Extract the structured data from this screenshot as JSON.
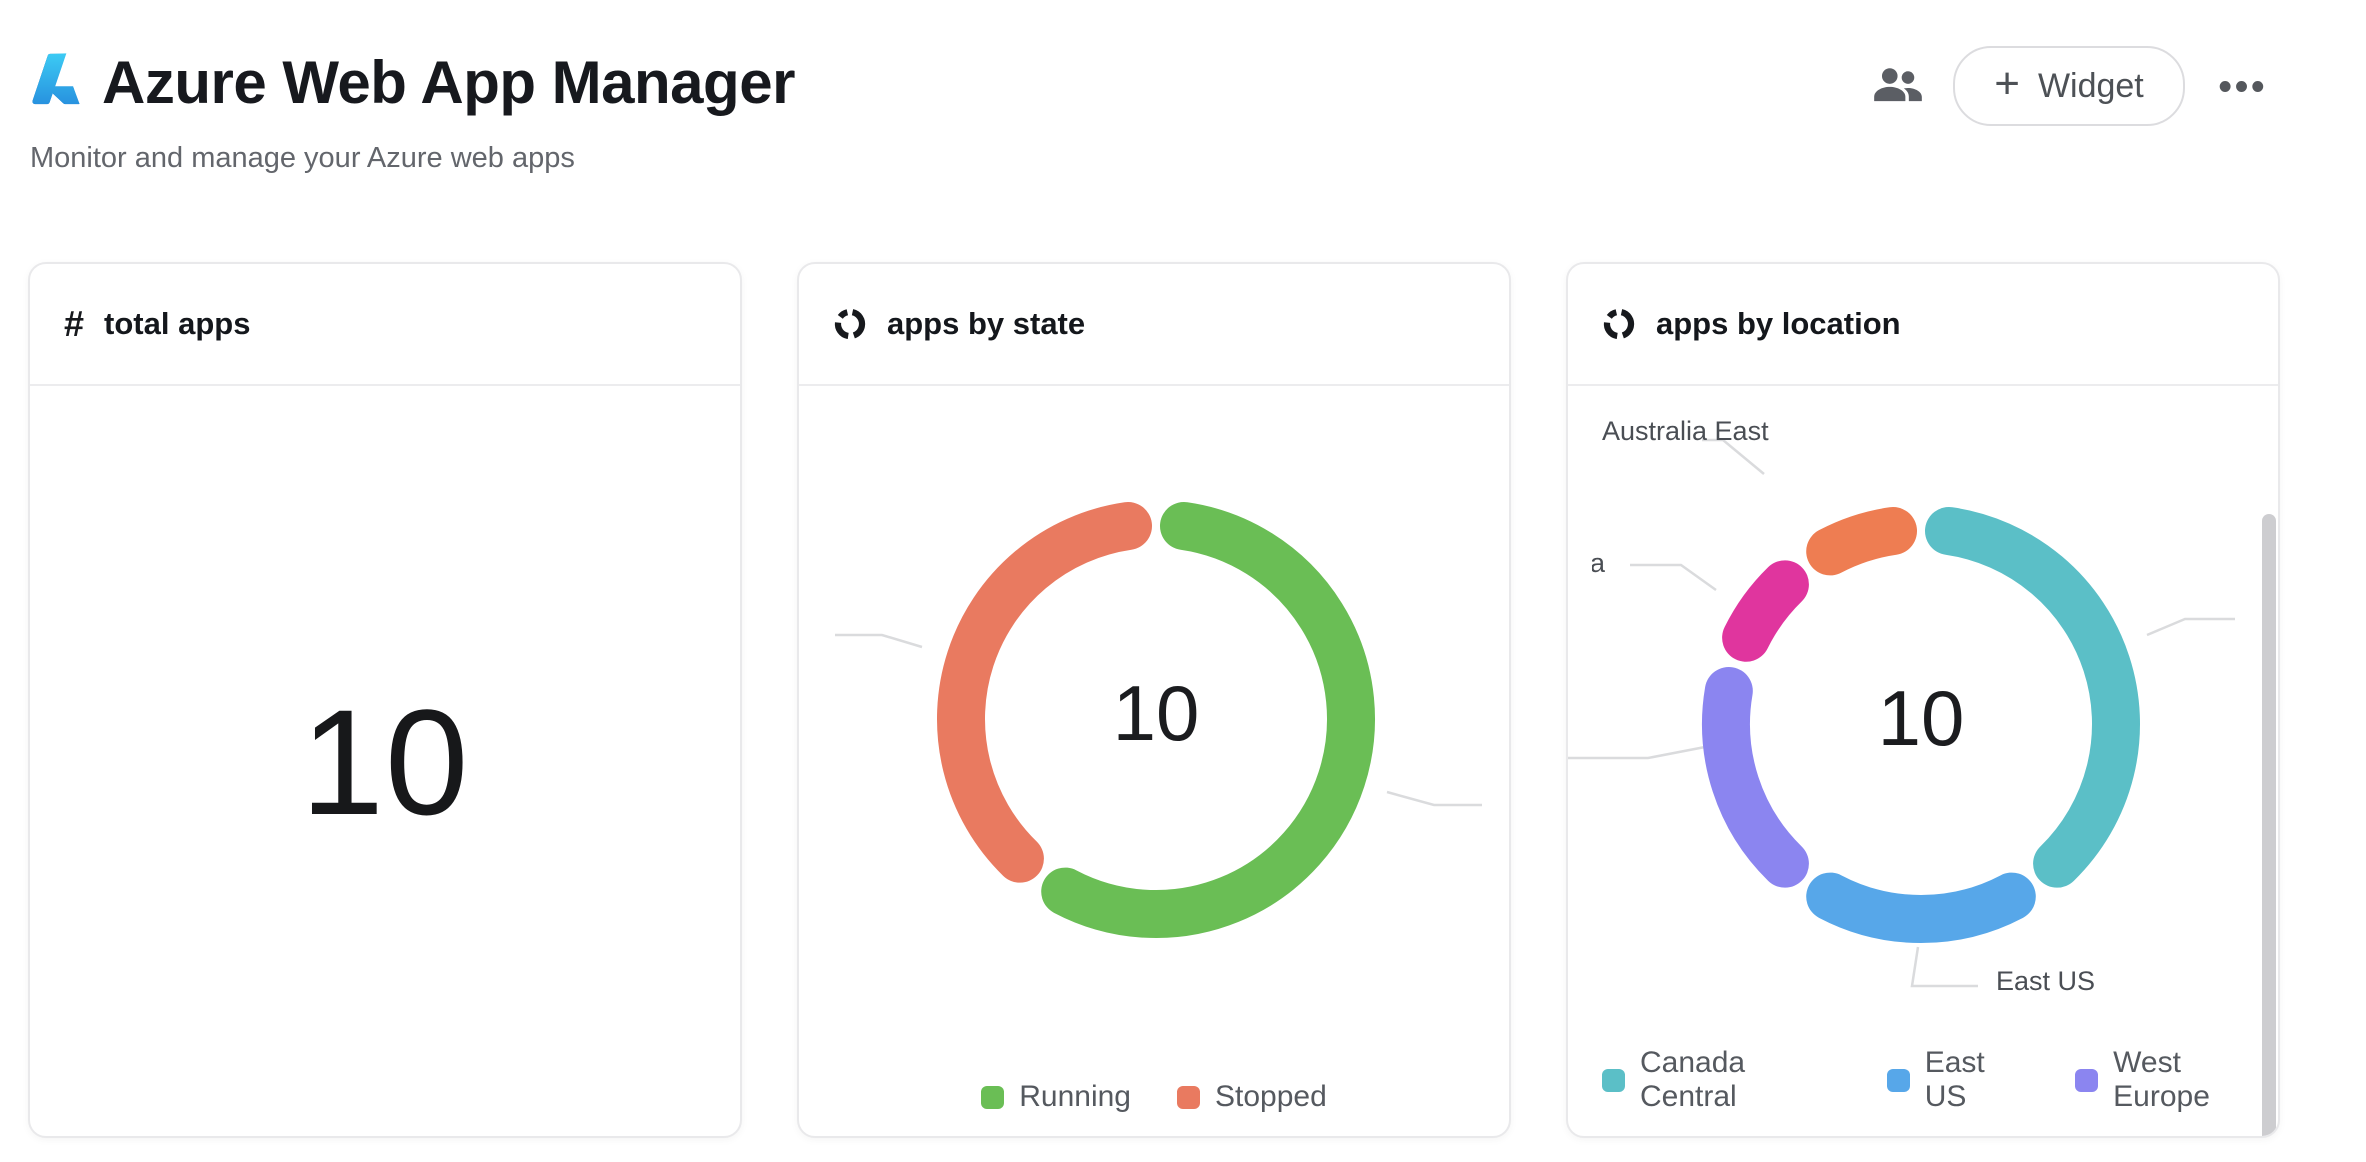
{
  "header": {
    "title": "Azure Web App Manager",
    "subtitle": "Monitor and manage your Azure web apps",
    "logo": "azure-logo",
    "actions": {
      "people_icon": "people-icon",
      "widget_button": {
        "plus": "+",
        "label": "Widget"
      },
      "more_icon": "•••"
    }
  },
  "cards": {
    "total_apps": {
      "icon": "#",
      "title": "total apps",
      "value": "10"
    },
    "apps_by_state": {
      "title": "apps by state",
      "center_label": "10",
      "legend": [
        {
          "label": "Running",
          "color": "#6ABE55"
        },
        {
          "label": "Stopped",
          "color": "#E97A60"
        }
      ]
    },
    "apps_by_location": {
      "title": "apps by location",
      "center_label": "10",
      "legend": [
        {
          "label": "Canada Central",
          "color": "#5BBFC7"
        },
        {
          "label": "East US",
          "color": "#57A7E9"
        },
        {
          "label": "West Europe",
          "color": "#8B85F0"
        }
      ],
      "callout_labels": {
        "australia_east": "Australia East",
        "east_us": "East US",
        "clipped_left_fragment": "a"
      },
      "scrollbar": true
    }
  },
  "chart_data": [
    {
      "type": "donut",
      "title": "apps by state",
      "center_label": "10",
      "total": 10,
      "legend_position": "bottom-center",
      "segments": [
        {
          "label": "Running",
          "value": 6,
          "color": "#6ABE55"
        },
        {
          "label": "Stopped",
          "value": 4,
          "color": "#E97A60"
        }
      ]
    },
    {
      "type": "donut",
      "title": "apps by location",
      "center_label": "10",
      "total": 10,
      "legend_position": "bottom-left",
      "segments": [
        {
          "label": "Canada Central",
          "value": 4,
          "color": "#5BBFC7"
        },
        {
          "label": "East US",
          "value": 2,
          "color": "#57A7E9"
        },
        {
          "label": "West Europe",
          "value": 2,
          "color": "#8B85F0"
        },
        {
          "label": "",
          "value": 1,
          "color": "#E0359E"
        },
        {
          "label": "Australia East",
          "value": 1,
          "color": "#EE7D52"
        }
      ]
    }
  ]
}
